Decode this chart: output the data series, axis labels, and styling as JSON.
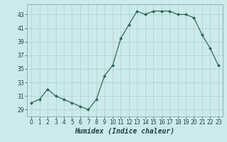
{
  "x": [
    0,
    1,
    2,
    3,
    4,
    5,
    6,
    7,
    8,
    9,
    10,
    11,
    12,
    13,
    14,
    15,
    16,
    17,
    18,
    19,
    20,
    21,
    22,
    23
  ],
  "y": [
    30,
    30.5,
    32,
    31,
    30.5,
    30,
    29.5,
    29,
    30.5,
    34,
    35.5,
    39.5,
    41.5,
    43.5,
    43,
    43.5,
    43.5,
    43.5,
    43,
    43,
    42.5,
    40,
    38,
    35.5
  ],
  "xlabel": "Humidex (Indice chaleur)",
  "xlim": [
    -0.5,
    23.5
  ],
  "ylim": [
    28.0,
    44.5
  ],
  "yticks": [
    29,
    31,
    33,
    35,
    37,
    39,
    41,
    43
  ],
  "xticks": [
    0,
    1,
    2,
    3,
    4,
    5,
    6,
    7,
    8,
    9,
    10,
    11,
    12,
    13,
    14,
    15,
    16,
    17,
    18,
    19,
    20,
    21,
    22,
    23
  ],
  "line_color": "#2e6b5e",
  "marker_color": "#2e6b5e",
  "bg_color": "#cdeaea",
  "grid_color_major": "#aacfcf",
  "grid_color_minor": "#bddada",
  "axis_fontsize": 6.5,
  "tick_fontsize": 5.5,
  "xlabel_fontsize": 7.0
}
